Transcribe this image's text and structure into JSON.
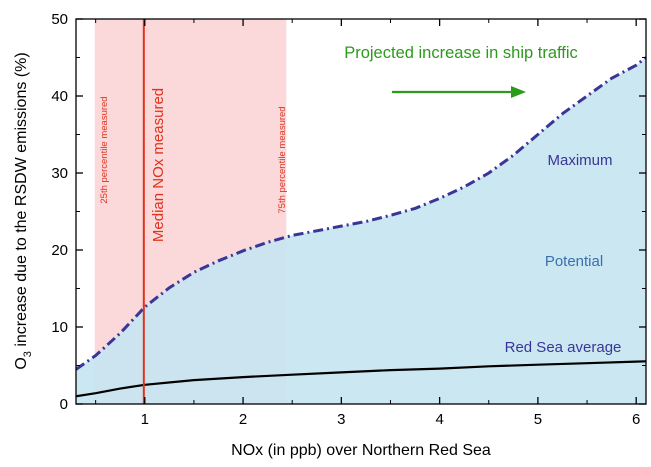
{
  "chart_data": {
    "type": "area",
    "xlabel": "NOx (in ppb) over Northern Red Sea",
    "ylabel_main": "O",
    "ylabel_sub": "3",
    "ylabel_rest": " increase due to the RSDW emissions (%)",
    "xlim": [
      0.3,
      6.1
    ],
    "ylim": [
      0,
      50
    ],
    "xticks": [
      1,
      2,
      3,
      4,
      5,
      6
    ],
    "yticks": [
      0,
      10,
      20,
      30,
      40,
      50
    ],
    "maximum_series": {
      "name": "Maximum",
      "x": [
        0.3,
        0.5,
        0.75,
        1.0,
        1.25,
        1.5,
        1.75,
        2.0,
        2.25,
        2.5,
        2.75,
        3.0,
        3.25,
        3.5,
        3.75,
        4.0,
        4.25,
        4.5,
        4.75,
        5.0,
        5.25,
        5.5,
        5.75,
        6.0,
        6.1
      ],
      "y": [
        4.5,
        6.3,
        9.2,
        12.6,
        15.1,
        17.1,
        18.6,
        19.9,
        21.0,
        21.9,
        22.5,
        23.1,
        23.7,
        24.5,
        25.4,
        26.7,
        28.2,
        30.0,
        32.3,
        35.0,
        37.7,
        40.0,
        42.3,
        44.0,
        45.0
      ]
    },
    "average_series": {
      "name": "Red Sea average",
      "x": [
        0.3,
        0.5,
        0.75,
        1.0,
        1.5,
        2.0,
        2.5,
        3.0,
        3.5,
        4.0,
        4.5,
        5.0,
        5.5,
        6.0,
        6.1
      ],
      "y": [
        1.0,
        1.4,
        2.0,
        2.5,
        3.1,
        3.5,
        3.8,
        4.1,
        4.4,
        4.6,
        4.9,
        5.1,
        5.3,
        5.5,
        5.55
      ]
    },
    "shaded_range": {
      "x_from": 0.49,
      "x_to": 2.44
    },
    "median_x": 0.99,
    "labels": {
      "maximum": "Maximum",
      "potential": "Potential",
      "average": "Red Sea average",
      "p25": "25th percentile measured",
      "p75": "75th percentile measured",
      "median": "Median NOx measured",
      "traffic": "Projected increase in ship traffic"
    },
    "colors": {
      "fill": "#c5e4f1",
      "percentile_band": "#f7b9be",
      "maximum_line": "#3a3597",
      "average_line": "#000000",
      "median_line": "#e0321c",
      "traffic": "#2c9a1b"
    }
  }
}
